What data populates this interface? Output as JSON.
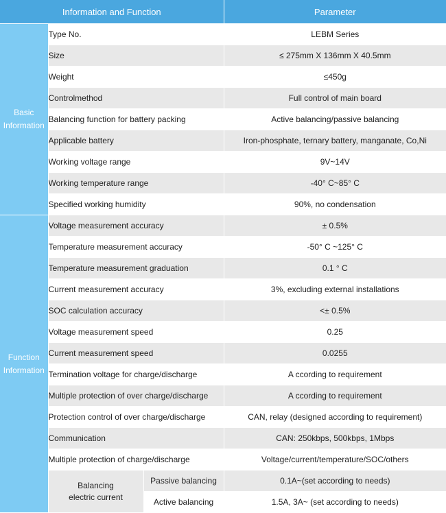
{
  "header": {
    "col1": "Information and  Function",
    "col2": "Parameter"
  },
  "groups": {
    "basic": {
      "line1": "Basic",
      "line2": "Information"
    },
    "function": {
      "line1": "Function",
      "line2": "Information"
    }
  },
  "basic_rows": [
    {
      "label": "Type  No.",
      "value": "LEBM Series"
    },
    {
      "label": "Size",
      "value": "≤   275mm  X   136mm  X  40.5mm"
    },
    {
      "label": "Weight",
      "value": "≤450g"
    },
    {
      "label": "Controlmethod",
      "value": "Full control of main board"
    },
    {
      "label": "Balancing  function  for   battery packing",
      "value": "Active  balancing/passive  balancing"
    },
    {
      "label": "Applicable  battery",
      "value": "Iron-phosphate, ternary battery, manganate, Co,Ni"
    },
    {
      "label": "Working voltage range",
      "value": "9V~14V"
    },
    {
      "label": "Working  temperature  range",
      "value": "-40° C~85° C"
    },
    {
      "label": "Specified  working  humidity",
      "value": "90%, no condensation"
    }
  ],
  "function_rows": [
    {
      "label": "Voltage  measurement   accuracy",
      "value": "± 0.5%"
    },
    {
      "label": "Temperature measurement  accuracy",
      "value": "-50° C ~125° C"
    },
    {
      "label": "Temperature  measurement  graduation",
      "value": "0.1 ° C"
    },
    {
      "label": "Current   measurement  accuracy",
      "value": "3%,  excluding   external  installations"
    },
    {
      "label": "SOC  calculation    accuracy",
      "value": "<±  0.5%"
    },
    {
      "label": "Voltage   measurement     speed",
      "value": "0.25"
    },
    {
      "label": "Current     measurement     speed",
      "value": "0.0255"
    },
    {
      "label": "Termination  voltage  for  charge/discharge",
      "value": "A ccording   to  requirement"
    },
    {
      "label": "Multiple  protection    of over charge/discharge",
      "value": "A ccording   to  requirement"
    },
    {
      "label": "Protection  control  of over charge/discharge",
      "value": "CAN,  relay  (designed according    to  requirement)"
    },
    {
      "label": "Communication",
      "value": "CAN:  250kbps,  500kbps,  1Mbps"
    },
    {
      "label": "Multiple  protection  of charge/discharge",
      "value": "Voltage/current/temperature/SOC/others"
    }
  ],
  "balancing": {
    "line1": "Balancing",
    "line2": "electric   current",
    "passive_label": "Passive   balancing",
    "passive_value": "0.1A~(set  according  to  needs)",
    "active_label": "Active    balancing",
    "active_value": "1.5A,  3A~  (set  according  to  needs)"
  }
}
